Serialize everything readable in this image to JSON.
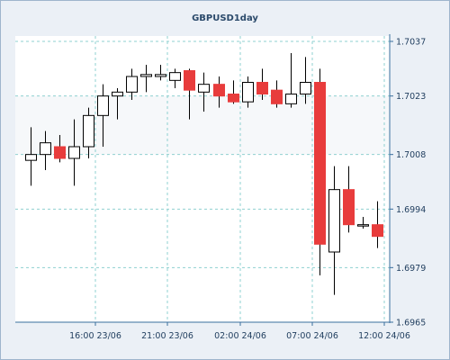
{
  "chart_data": {
    "type": "candlestick",
    "title": "GBPUSD1day",
    "xlabel": "",
    "ylabel": "",
    "ylim": [
      1.6965,
      1.7045
    ],
    "y_ticks": [
      "1.7037",
      "1.7023",
      "1.7008",
      "1.6994",
      "1.6979",
      "1.6965"
    ],
    "x_ticks": [
      {
        "label": "16:00 23/06",
        "index": 4.5
      },
      {
        "label": "21:00 23/06",
        "index": 9.5
      },
      {
        "label": "02:00 24/06",
        "index": 14.5
      },
      {
        "label": "07:00 24/06",
        "index": 19.5
      },
      {
        "label": "12:00 24/06",
        "index": 24.5
      }
    ],
    "colors": {
      "up": "#ffffff",
      "down": "#e83c3c",
      "outline": "#000000",
      "grid": "#8fd0d0",
      "axis": "#3a6f9e"
    },
    "candles": [
      {
        "o": 1.70065,
        "h": 1.7015,
        "l": 1.7,
        "c": 1.7008
      },
      {
        "o": 1.7008,
        "h": 1.7014,
        "l": 1.7004,
        "c": 1.7011
      },
      {
        "o": 1.701,
        "h": 1.7013,
        "l": 1.7006,
        "c": 1.7007
      },
      {
        "o": 1.7007,
        "h": 1.7017,
        "l": 1.7,
        "c": 1.701
      },
      {
        "o": 1.701,
        "h": 1.702,
        "l": 1.7007,
        "c": 1.7018
      },
      {
        "o": 1.7018,
        "h": 1.7026,
        "l": 1.701,
        "c": 1.7023
      },
      {
        "o": 1.7023,
        "h": 1.7025,
        "l": 1.7017,
        "c": 1.7024
      },
      {
        "o": 1.7024,
        "h": 1.703,
        "l": 1.7022,
        "c": 1.7028
      },
      {
        "o": 1.7028,
        "h": 1.7031,
        "l": 1.7024,
        "c": 1.70285
      },
      {
        "o": 1.7028,
        "h": 1.7031,
        "l": 1.7027,
        "c": 1.70285
      },
      {
        "o": 1.7027,
        "h": 1.703,
        "l": 1.7025,
        "c": 1.7029
      },
      {
        "o": 1.70295,
        "h": 1.703,
        "l": 1.7017,
        "c": 1.70245
      },
      {
        "o": 1.7024,
        "h": 1.7029,
        "l": 1.7019,
        "c": 1.7026
      },
      {
        "o": 1.7026,
        "h": 1.7028,
        "l": 1.702,
        "c": 1.7023
      },
      {
        "o": 1.70235,
        "h": 1.7027,
        "l": 1.7021,
        "c": 1.70215
      },
      {
        "o": 1.70215,
        "h": 1.7028,
        "l": 1.702,
        "c": 1.70265
      },
      {
        "o": 1.70265,
        "h": 1.703,
        "l": 1.7022,
        "c": 1.70235
      },
      {
        "o": 1.70245,
        "h": 1.7027,
        "l": 1.702,
        "c": 1.7021
      },
      {
        "o": 1.7021,
        "h": 1.7034,
        "l": 1.702,
        "c": 1.70235
      },
      {
        "o": 1.70235,
        "h": 1.7033,
        "l": 1.7021,
        "c": 1.70265
      },
      {
        "o": 1.70265,
        "h": 1.703,
        "l": 1.6977,
        "c": 1.6985
      },
      {
        "o": 1.6983,
        "h": 1.7005,
        "l": 1.6972,
        "c": 1.6999
      },
      {
        "o": 1.6999,
        "h": 1.7005,
        "l": 1.6988,
        "c": 1.699
      },
      {
        "o": 1.699,
        "h": 1.6992,
        "l": 1.6989,
        "c": 1.699
      },
      {
        "o": 1.699,
        "h": 1.6996,
        "l": 1.6984,
        "c": 1.6987
      }
    ]
  }
}
